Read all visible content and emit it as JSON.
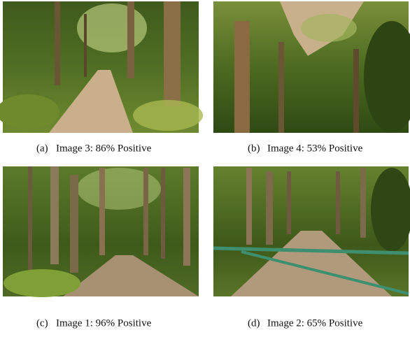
{
  "figures": [
    {
      "label": "(a)",
      "caption": "Image 3: 86% Positive"
    },
    {
      "label": "(b)",
      "caption": "Image 4: 53% Positive"
    },
    {
      "label": "(c)",
      "caption": "Image 1: 96% Positive"
    },
    {
      "label": "(d)",
      "caption": "Image 2: 65% Positive"
    }
  ]
}
